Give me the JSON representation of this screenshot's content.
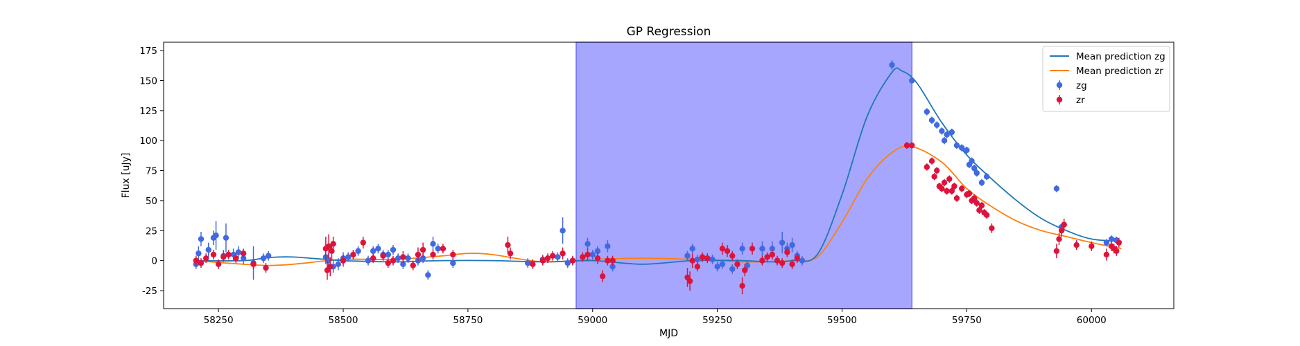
{
  "chart_data": {
    "type": "scatter",
    "title": "GP Regression",
    "xlabel": "MJD",
    "ylabel": "Flux [uJy]",
    "xlim": [
      58140,
      60165
    ],
    "ylim": [
      -40,
      182
    ],
    "xticks": [
      58250,
      58500,
      58750,
      59000,
      59250,
      59500,
      59750,
      60000
    ],
    "yticks": [
      -25,
      0,
      25,
      50,
      75,
      100,
      125,
      150,
      175
    ],
    "grid": false,
    "legend_position": "upper right",
    "shaded_region": {
      "x_start": 58967,
      "x_end": 59640,
      "color": "#a6a6ff"
    },
    "colors": {
      "zg_line": "#1f77b4",
      "zr_line": "#ff7f0e",
      "zg_points": "#4169e1",
      "zr_points": "#dc143c"
    },
    "legend": [
      {
        "label": "Mean prediction zg",
        "kind": "line",
        "color": "#1f77b4"
      },
      {
        "label": "Mean prediction zr",
        "kind": "line",
        "color": "#ff7f0e"
      },
      {
        "label": "zg",
        "kind": "marker",
        "color": "#4169e1"
      },
      {
        "label": "zr",
        "kind": "marker",
        "color": "#dc143c"
      }
    ],
    "mean_prediction_zg": {
      "x": [
        58200,
        58300,
        58350,
        58400,
        58500,
        58600,
        58700,
        58800,
        58900,
        59000,
        59100,
        59200,
        59300,
        59350,
        59400,
        59450,
        59500,
        59550,
        59600,
        59620,
        59650,
        59700,
        59750,
        59800,
        59850,
        59900,
        59950,
        60000,
        60060
      ],
      "y": [
        0,
        0,
        2.5,
        3,
        0,
        -1,
        0,
        0,
        -1,
        0,
        -3,
        0,
        0,
        -1,
        0,
        5,
        55,
        120,
        157,
        158,
        148,
        115,
        88,
        68,
        50,
        35,
        25,
        18,
        16
      ]
    },
    "mean_prediction_zr": {
      "x": [
        58200,
        58300,
        58350,
        58400,
        58500,
        58600,
        58700,
        58750,
        58800,
        58900,
        59000,
        59100,
        59200,
        59300,
        59400,
        59450,
        59500,
        59550,
        59600,
        59640,
        59700,
        59750,
        59800,
        59850,
        59900,
        59950,
        60000,
        60060
      ],
      "y": [
        0,
        -3,
        -4,
        -3,
        1,
        1,
        4,
        6,
        5,
        -1,
        1,
        2,
        1,
        -1,
        0,
        3,
        32,
        68,
        90,
        95,
        82,
        60,
        45,
        33,
        25,
        20,
        15,
        10
      ]
    },
    "series": [
      {
        "name": "zg",
        "x": [
          58205,
          58210,
          58215,
          58230,
          58240,
          58245,
          58260,
          58265,
          58280,
          58290,
          58300,
          58320,
          58340,
          58350,
          58465,
          58470,
          58480,
          58490,
          58500,
          58510,
          58530,
          58550,
          58560,
          58570,
          58580,
          58590,
          58600,
          58610,
          58620,
          58630,
          58650,
          58660,
          58670,
          58680,
          58690,
          58720,
          58870,
          58900,
          58930,
          58940,
          58950,
          58960,
          58990,
          59000,
          59010,
          59030,
          59040,
          59190,
          59200,
          59210,
          59230,
          59240,
          59250,
          59260,
          59280,
          59300,
          59310,
          59340,
          59360,
          59380,
          59390,
          59400,
          59410,
          59420,
          59600,
          59640,
          59670,
          59680,
          59690,
          59700,
          59705,
          59710,
          59720,
          59730,
          59740,
          59750,
          59755,
          59760,
          59765,
          59770,
          59780,
          59790,
          59930,
          59940,
          60030,
          60040,
          60050
        ],
        "y": [
          -3,
          6,
          18,
          9,
          19,
          21,
          4,
          19,
          5,
          7,
          2,
          -2,
          2,
          4,
          3,
          0,
          -5,
          -3,
          2,
          3,
          8,
          0,
          8,
          10,
          5,
          5,
          9,
          2,
          -3,
          2,
          0,
          2,
          -12,
          14,
          10,
          -2,
          -2,
          1,
          3,
          25,
          -2,
          0,
          14,
          5,
          8,
          12,
          -5,
          4,
          10,
          1,
          2,
          1,
          -5,
          -3,
          -7,
          10,
          -4,
          10,
          10,
          15,
          10,
          13,
          4,
          0,
          163,
          150,
          124,
          117,
          113,
          108,
          100,
          105,
          107,
          96,
          94,
          92,
          80,
          83,
          77,
          73,
          65,
          70,
          60,
          28,
          15,
          18,
          17
        ],
        "err": [
          4,
          6,
          6,
          6,
          6,
          12,
          5,
          12,
          5,
          5,
          5,
          14,
          4,
          4,
          6,
          6,
          5,
          5,
          5,
          4,
          4,
          4,
          4,
          4,
          4,
          4,
          4,
          4,
          4,
          4,
          4,
          4,
          4,
          6,
          4,
          4,
          4,
          4,
          4,
          11,
          4,
          4,
          5,
          4,
          4,
          5,
          4,
          4,
          4,
          4,
          4,
          4,
          4,
          4,
          4,
          5,
          4,
          6,
          6,
          9,
          5,
          6,
          4,
          4,
          4,
          3,
          3,
          3,
          3,
          3,
          3,
          3,
          3,
          3,
          3,
          3,
          3,
          3,
          3,
          3,
          3,
          3,
          3,
          3,
          3,
          3,
          3
        ]
      },
      {
        "name": "zr",
        "x": [
          58205,
          58215,
          58225,
          58240,
          58250,
          58260,
          58270,
          58285,
          58300,
          58320,
          58345,
          58465,
          58468,
          58471,
          58474,
          58477,
          58480,
          58500,
          58520,
          58540,
          58560,
          58580,
          58590,
          58600,
          58620,
          58640,
          58650,
          58660,
          58680,
          58700,
          58720,
          58830,
          58835,
          58880,
          58900,
          58910,
          58920,
          58940,
          58960,
          58980,
          58990,
          59010,
          59020,
          59030,
          59040,
          59190,
          59195,
          59200,
          59210,
          59220,
          59230,
          59260,
          59270,
          59280,
          59290,
          59300,
          59305,
          59320,
          59340,
          59350,
          59360,
          59370,
          59380,
          59390,
          59400,
          59410,
          59630,
          59640,
          59670,
          59680,
          59685,
          59690,
          59695,
          59700,
          59705,
          59710,
          59715,
          59720,
          59725,
          59730,
          59740,
          59750,
          59755,
          59760,
          59765,
          59770,
          59775,
          59780,
          59785,
          59790,
          59800,
          59930,
          59935,
          59940,
          59945,
          59970,
          60000,
          60030,
          60040,
          60045,
          60050,
          60055
        ],
        "y": [
          0,
          -2,
          2,
          5,
          -3,
          3,
          5,
          2,
          6,
          -3,
          -6,
          10,
          -8,
          12,
          -5,
          8,
          14,
          0,
          5,
          15,
          2,
          4,
          -2,
          0,
          3,
          -4,
          5,
          9,
          5,
          10,
          5,
          13,
          6,
          -3,
          0,
          2,
          4,
          6,
          0,
          3,
          5,
          2,
          -13,
          0,
          0,
          -14,
          -17,
          0,
          -5,
          3,
          2,
          10,
          8,
          4,
          -3,
          -21,
          -8,
          10,
          0,
          3,
          5,
          0,
          -2,
          7,
          -3,
          2,
          96,
          96,
          78,
          83,
          70,
          75,
          62,
          60,
          65,
          58,
          68,
          58,
          62,
          52,
          60,
          55,
          56,
          50,
          52,
          48,
          42,
          46,
          40,
          38,
          27,
          8,
          18,
          25,
          30,
          13,
          12,
          5,
          12,
          10,
          8,
          15
        ],
        "err": [
          4,
          4,
          4,
          4,
          4,
          4,
          4,
          4,
          4,
          4,
          4,
          10,
          8,
          10,
          8,
          8,
          6,
          5,
          4,
          5,
          4,
          4,
          4,
          4,
          5,
          4,
          6,
          6,
          4,
          4,
          4,
          7,
          5,
          4,
          4,
          4,
          4,
          5,
          4,
          4,
          5,
          5,
          5,
          4,
          4,
          8,
          8,
          6,
          4,
          4,
          4,
          5,
          5,
          4,
          4,
          7,
          5,
          5,
          4,
          4,
          4,
          4,
          4,
          4,
          4,
          4,
          3,
          3,
          3,
          3,
          3,
          3,
          3,
          3,
          3,
          3,
          3,
          3,
          3,
          3,
          3,
          3,
          3,
          3,
          3,
          3,
          3,
          3,
          3,
          3,
          4,
          6,
          5,
          5,
          5,
          4,
          4,
          5,
          4,
          4,
          4,
          4
        ]
      }
    ]
  }
}
